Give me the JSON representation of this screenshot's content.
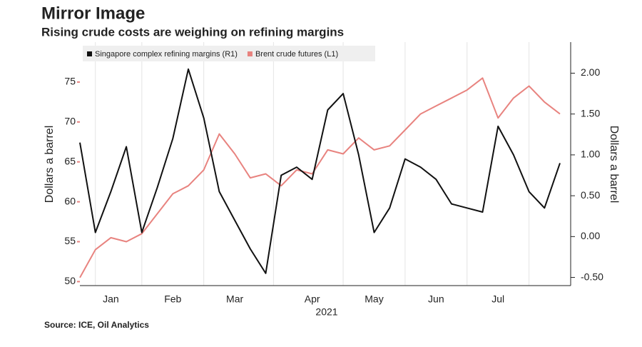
{
  "chart_data": {
    "type": "line",
    "title": "Mirror Image",
    "subtitle": "Rising crude costs are weighing on refining margins",
    "source": "Source: ICE, Oil Analytics",
    "x_label": "2021",
    "y_label": "Dollars a barrel",
    "y2_label": "Dollars a barrel",
    "categories": [
      null,
      null,
      "Jan",
      null,
      null,
      null,
      "Feb",
      null,
      null,
      null,
      "Mar",
      null,
      null,
      null,
      null,
      "Apr",
      null,
      null,
      null,
      "May",
      null,
      null,
      null,
      "Jun",
      null,
      null,
      null,
      "Jul",
      null,
      null,
      null,
      null
    ],
    "series": [
      {
        "name": "Singapore complex refining margins (R1)",
        "color": "#111111",
        "axis": "y2",
        "values": [
          1.15,
          0.05,
          0.55,
          1.1,
          0.05,
          0.6,
          1.2,
          2.05,
          1.45,
          0.55,
          0.2,
          -0.15,
          -0.45,
          0.75,
          0.85,
          0.7,
          1.55,
          1.75,
          1.0,
          0.05,
          0.35,
          0.95,
          0.85,
          0.7,
          0.4,
          0.35,
          0.3,
          1.35,
          1.0,
          0.55,
          0.35,
          0.9
        ]
      },
      {
        "name": "Brent crude futures (L1)",
        "color": "#e8837f",
        "axis": "y",
        "values": [
          50.5,
          54,
          55.5,
          55,
          56,
          58.5,
          61,
          62,
          64,
          68.5,
          66,
          63,
          63.5,
          62,
          64,
          63.5,
          66.5,
          66,
          68,
          66.5,
          67,
          69,
          71,
          72,
          73,
          74,
          75.5,
          70.5,
          73,
          74.5,
          72.5,
          71
        ]
      }
    ],
    "ylim": [
      49.5,
      80
    ],
    "yticks": [
      50,
      55,
      60,
      65,
      70,
      75
    ],
    "y2lim": [
      -0.6,
      2.38
    ],
    "y2ticks": [
      {
        "value": -0.5,
        "label": "-0.50"
      },
      {
        "value": 0,
        "label": "0.00"
      },
      {
        "value": 0.5,
        "label": "0.50"
      },
      {
        "value": 1,
        "label": "1.00"
      },
      {
        "value": 1.5,
        "label": "1.50"
      },
      {
        "value": 2,
        "label": "2.00"
      }
    ],
    "grid": true,
    "legend": "top-left"
  }
}
